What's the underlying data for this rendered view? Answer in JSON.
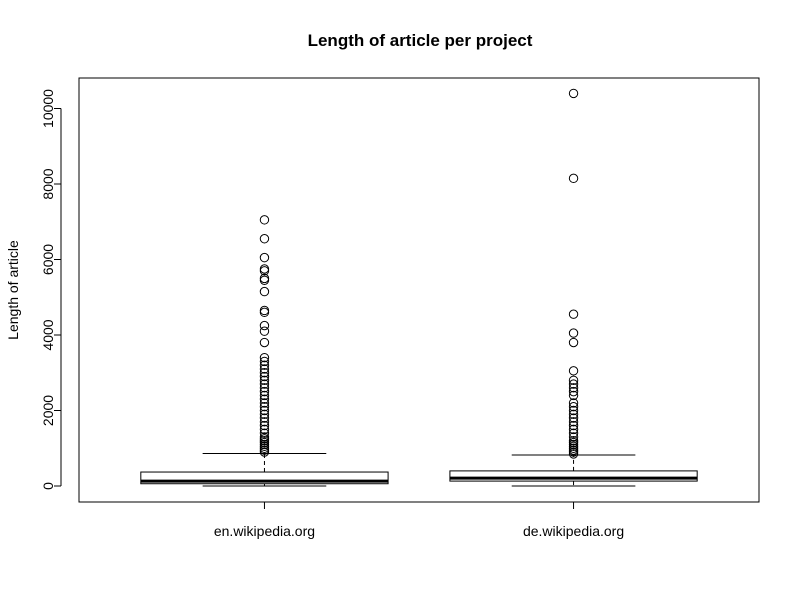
{
  "chart_data": {
    "type": "box",
    "title": "Length of article per project",
    "xlabel": "",
    "ylabel": "Length of article",
    "ylim": [
      -400,
      10800
    ],
    "y_ticks": [
      0,
      2000,
      4000,
      6000,
      8000,
      10000
    ],
    "grid": false,
    "categories": [
      "en.wikipedia.org",
      "de.wikipedia.org"
    ],
    "series": [
      {
        "stats": {
          "whisker_low": 0,
          "q1": 60,
          "median": 130,
          "q3": 370,
          "whisker_high": 860
        },
        "outliers": [
          900,
          950,
          1000,
          1050,
          1100,
          1150,
          1200,
          1250,
          1300,
          1400,
          1500,
          1600,
          1700,
          1800,
          1900,
          2000,
          2100,
          2200,
          2300,
          2400,
          2500,
          2600,
          2700,
          2800,
          2900,
          3000,
          3100,
          3200,
          3300,
          3400,
          3800,
          4100,
          4250,
          4600,
          4650,
          5150,
          5450,
          5500,
          5700,
          5750,
          6050,
          6550,
          7050
        ]
      },
      {
        "stats": {
          "whisker_low": 0,
          "q1": 130,
          "median": 210,
          "q3": 400,
          "whisker_high": 820
        },
        "outliers": [
          850,
          900,
          950,
          1000,
          1050,
          1100,
          1150,
          1200,
          1300,
          1400,
          1500,
          1600,
          1700,
          1800,
          1900,
          2000,
          2100,
          2200,
          2400,
          2500,
          2600,
          2700,
          2800,
          3050,
          3800,
          4050,
          4550,
          8150,
          10400
        ]
      }
    ]
  }
}
